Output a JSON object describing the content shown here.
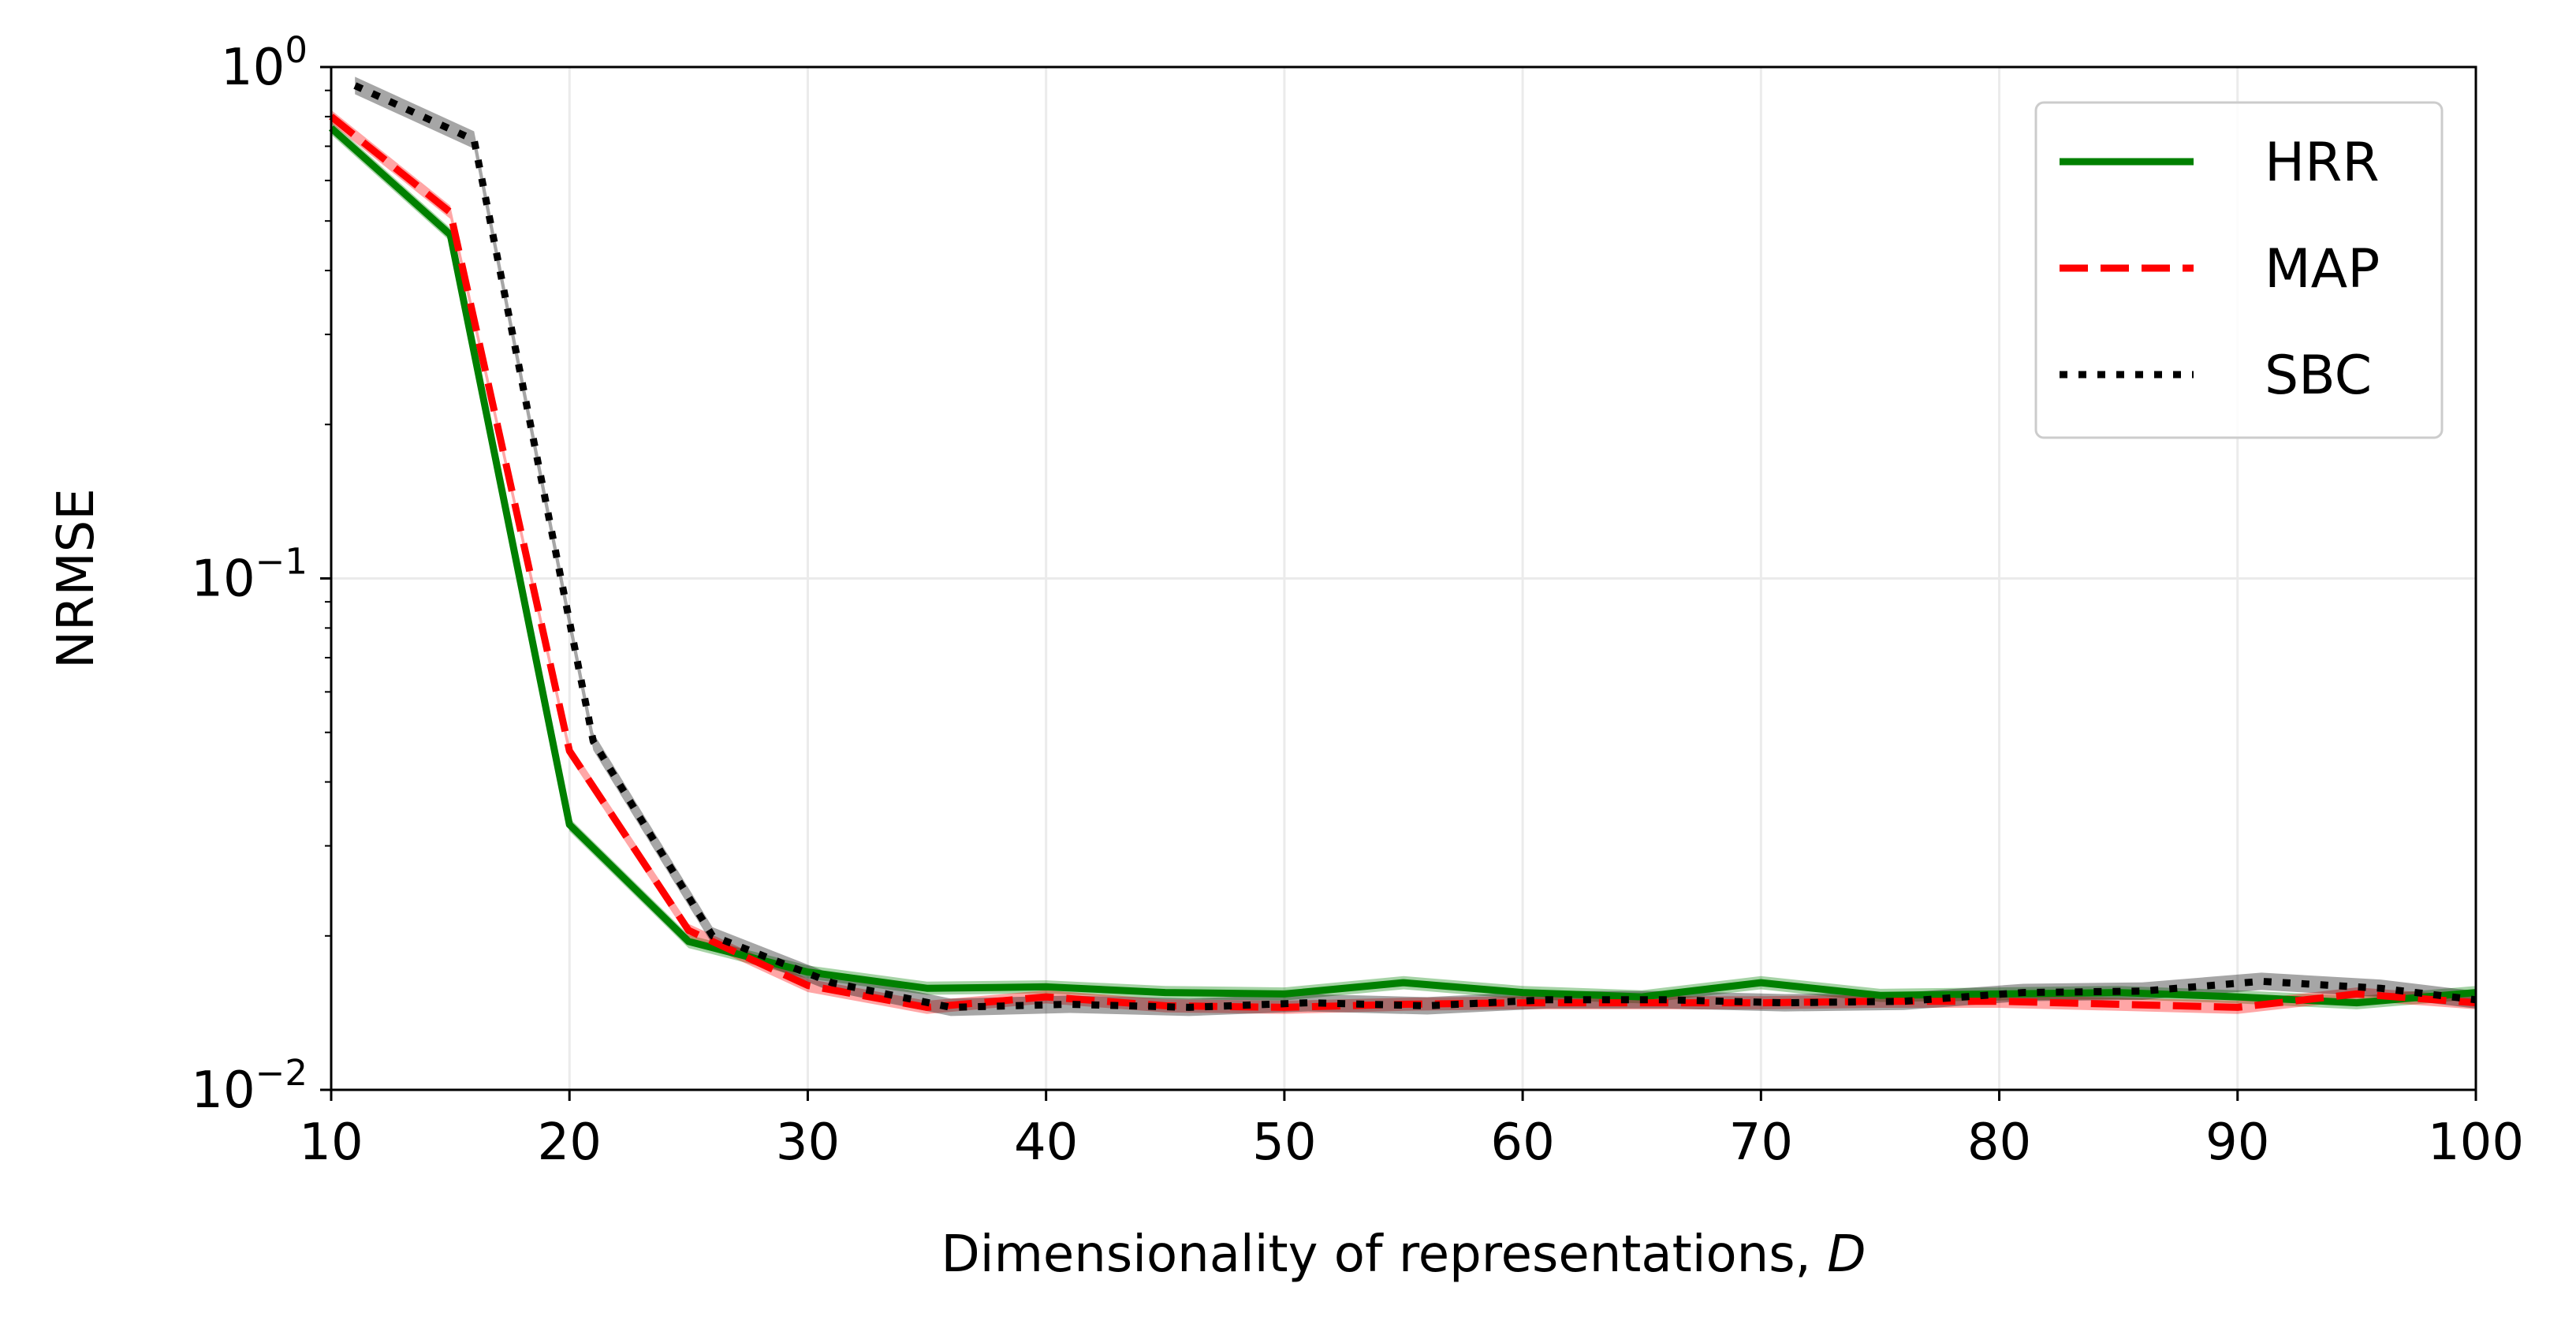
{
  "chart_data": {
    "type": "line",
    "xlabel": "Dimensionality of representations, ",
    "xlabel_var": "D",
    "ylabel": "NRMSE",
    "xlim": [
      10,
      100
    ],
    "ylim": [
      0.01,
      1
    ],
    "yscale": "log",
    "grid": true,
    "legend_position": "top-right",
    "x_ticks": [
      "10",
      "20",
      "30",
      "40",
      "50",
      "60",
      "70",
      "80",
      "90",
      "100"
    ],
    "y_ticks": [
      {
        "base": "10",
        "exp": "0"
      },
      {
        "base": "10",
        "exp": "−1"
      },
      {
        "base": "10",
        "exp": "−2"
      }
    ],
    "series": [
      {
        "name": "HRR",
        "color": "#008000",
        "style": "solid",
        "x": [
          10,
          15,
          20,
          25,
          30,
          35,
          40,
          45,
          50,
          55,
          60,
          65,
          70,
          75,
          80,
          85,
          90,
          95,
          100
        ],
        "y": [
          0.76,
          0.47,
          0.033,
          0.0195,
          0.017,
          0.0158,
          0.0159,
          0.0155,
          0.0154,
          0.0162,
          0.0155,
          0.0152,
          0.0162,
          0.0153,
          0.0154,
          0.0155,
          0.0152,
          0.0148,
          0.0155
        ],
        "band": 0.03
      },
      {
        "name": "MAP",
        "color": "#ff0000",
        "style": "dashed",
        "x": [
          10,
          15,
          20,
          25,
          30,
          35,
          40,
          45,
          50,
          55,
          60,
          65,
          70,
          75,
          80,
          85,
          90,
          95,
          100
        ],
        "y": [
          0.8,
          0.52,
          0.046,
          0.0205,
          0.016,
          0.0145,
          0.0152,
          0.0146,
          0.0145,
          0.0147,
          0.0148,
          0.0148,
          0.0148,
          0.0149,
          0.0149,
          0.0147,
          0.0145,
          0.0154,
          0.0148
        ],
        "band": 0.03
      },
      {
        "name": "SBC",
        "color": "#000000",
        "style": "dotted",
        "x": [
          11,
          16,
          21,
          26,
          31,
          36,
          41,
          46,
          51,
          56,
          61,
          66,
          71,
          76,
          81,
          86,
          91,
          96,
          100
        ],
        "y": [
          0.92,
          0.72,
          0.048,
          0.02,
          0.0162,
          0.0145,
          0.0147,
          0.0145,
          0.0148,
          0.0146,
          0.015,
          0.015,
          0.0148,
          0.0149,
          0.0155,
          0.0156,
          0.0163,
          0.0158,
          0.015
        ],
        "band": 0.04
      }
    ]
  }
}
